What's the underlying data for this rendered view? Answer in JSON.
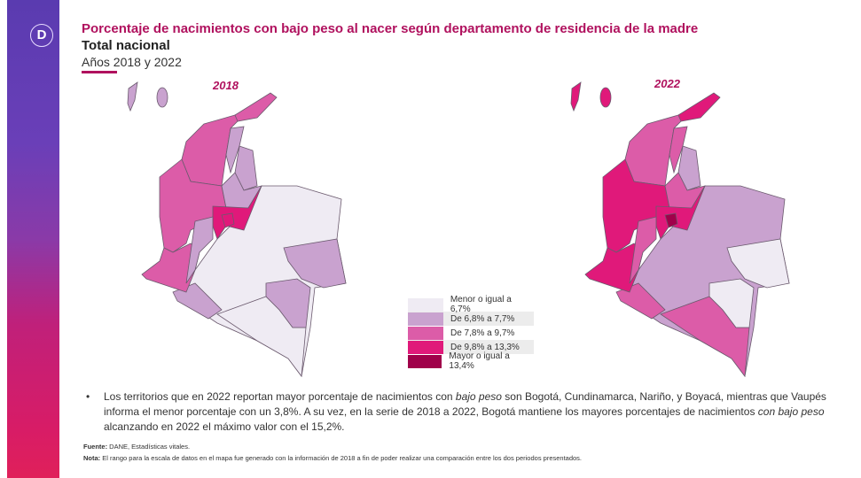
{
  "title": "Porcentaje de nacimientos con bajo peso al nacer según departamento de residencia de la madre",
  "subtitle": "Total nacional",
  "years_label": "Años 2018 y 2022",
  "logo_letter": "D",
  "colors": {
    "accent": "#b0115e",
    "c1": "#efebf3",
    "c2": "#c9a2cf",
    "c3": "#dc5ca8",
    "c4": "#e0197a",
    "c5": "#a0004a"
  },
  "maps": [
    {
      "year": "2018",
      "fills": {
        "islands": "c2",
        "caribe": "c3",
        "guajira": "c3",
        "cesar": "c2",
        "norte_santander": "c2",
        "antioquia": "c3",
        "santander": "c2",
        "centro": "c4",
        "bogota": "c4",
        "pacifico": "c3",
        "huila": "c2",
        "oriente": "c1",
        "guainia": "c2",
        "vaupes": "c2",
        "putumayo": "c2",
        "amazonas": "c1"
      }
    },
    {
      "year": "2022",
      "fills": {
        "islands": "c4",
        "caribe": "c3",
        "guajira": "c4",
        "cesar": "c3",
        "norte_santander": "c2",
        "antioquia": "c4",
        "santander": "c3",
        "centro": "c4",
        "bogota": "c5",
        "pacifico": "c4",
        "huila": "c3",
        "oriente": "c2",
        "guainia": "c1",
        "vaupes": "c1",
        "putumayo": "c3",
        "amazonas": "c3"
      }
    }
  ],
  "legend": [
    {
      "label": "Menor o igual a 6,7%",
      "color": "c1"
    },
    {
      "label": "De 6,8% a 7,7%",
      "color": "c2"
    },
    {
      "label": "De 7,8% a 9,7%",
      "color": "c3"
    },
    {
      "label": "De 9,8% a 13,3%",
      "color": "c4"
    },
    {
      "label": "Mayor o igual a 13,4%",
      "color": "c5"
    }
  ],
  "bullet": {
    "symbol": "•",
    "t1": "Los territorios que en 2022 reportan mayor porcentaje de nacimientos con ",
    "t2": "bajo peso",
    "t3": " son Bogotá, Cundinamarca, Nariño, y Boyacá, mientras que Vaupés informa el menor porcentaje con un 3,8%. A su vez, en la serie de 2018 a 2022, Bogotá mantiene los mayores porcentajes de nacimientos ",
    "t4": "con bajo peso",
    "t5": " alcanzando en 2022 el máximo valor con el 15,2%."
  },
  "footer": {
    "source_label": "Fuente:",
    "source": " DANE, Estadísticas vitales.",
    "note_label": "Nota:",
    "note": " El rango para la escala de datos en el mapa fue generado con la información de 2018 a fin de poder realizar una comparación entre los dos periodos presentados."
  }
}
